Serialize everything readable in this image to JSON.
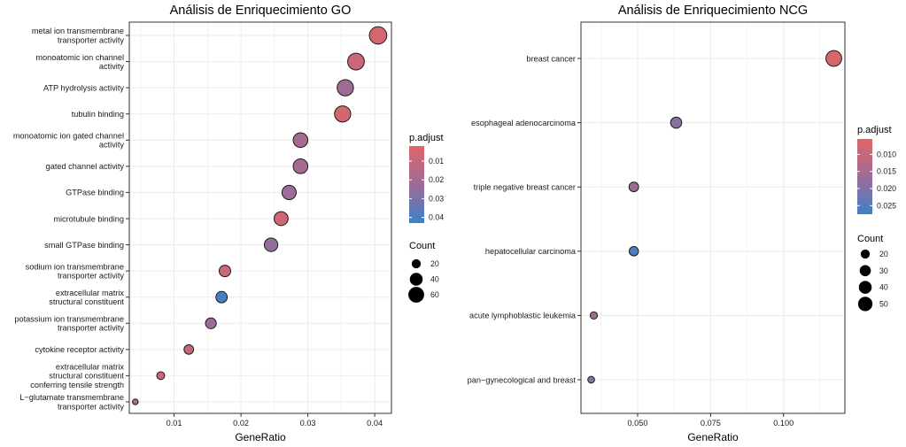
{
  "chart_data": [
    {
      "type": "scatter",
      "title": "Análisis de Enriquecimiento GO",
      "xlabel": "GeneRatio",
      "ylabel": "",
      "xlim": [
        0.0033,
        0.0425
      ],
      "xticks": [
        0.01,
        0.02,
        0.03,
        0.04
      ],
      "xtick_labels": [
        "0.01",
        "0.02",
        "0.03",
        "0.04"
      ],
      "grid": true,
      "legend_position": "right",
      "categories": [
        [
          "metal ion transmembrane",
          "transporter activity"
        ],
        [
          "monoatomic ion channel",
          "activity"
        ],
        [
          "ATP hydrolysis activity"
        ],
        [
          "tubulin binding"
        ],
        [
          "monoatomic ion gated channel",
          "activity"
        ],
        [
          "gated channel activity"
        ],
        [
          "GTPase binding"
        ],
        [
          "microtubule binding"
        ],
        [
          "small GTPase binding"
        ],
        [
          "sodium ion transmembrane",
          "transporter activity"
        ],
        [
          "extracellular matrix",
          "structural constituent"
        ],
        [
          "potassium ion transmembrane",
          "transporter activity"
        ],
        [
          "cytokine receptor activity"
        ],
        [
          "extracellular matrix",
          "structural constituent",
          "conferring tensile strength"
        ],
        [
          "L−glutamate transmembrane",
          "transporter activity"
        ]
      ],
      "x": [
        0.0405,
        0.0372,
        0.0356,
        0.0352,
        0.0289,
        0.0289,
        0.0272,
        0.026,
        0.0245,
        0.0176,
        0.0171,
        0.0155,
        0.0122,
        0.008,
        0.0042
      ],
      "count": [
        73,
        67,
        64,
        63,
        52,
        52,
        49,
        47,
        44,
        32,
        31,
        28,
        22,
        15,
        8
      ],
      "p_adjust": [
        0.006,
        0.008,
        0.022,
        0.006,
        0.02,
        0.02,
        0.022,
        0.008,
        0.025,
        0.008,
        0.041,
        0.023,
        0.01,
        0.01,
        0.015
      ],
      "color_legend": {
        "title": "p.adjust",
        "min": 0.002,
        "max": 0.043,
        "ticks": [
          0.01,
          0.02,
          0.03,
          0.04
        ],
        "tick_labels": [
          "0.01",
          "0.02",
          "0.03",
          "0.04"
        ]
      },
      "size_legend": {
        "title": "Count",
        "values": [
          20,
          40,
          60
        ],
        "labels": [
          "20",
          "40",
          "60"
        ]
      }
    },
    {
      "type": "scatter",
      "title": "Análisis de Enriquecimiento NCG",
      "xlabel": "GeneRatio",
      "ylabel": "",
      "xlim": [
        0.0306,
        0.121
      ],
      "xticks": [
        0.05,
        0.075,
        0.1
      ],
      "xtick_labels": [
        "0.050",
        "0.075",
        "0.100"
      ],
      "grid": true,
      "legend_position": "right",
      "categories": [
        [
          "breast cancer"
        ],
        [
          "esophageal adenocarcinoma"
        ],
        [
          "triple negative breast cancer"
        ],
        [
          "hepatocellular carcinoma"
        ],
        [
          "acute lymphoblastic leukemia"
        ],
        [
          "pan−gynecological and breast"
        ]
      ],
      "x": [
        0.1172,
        0.0632,
        0.0487,
        0.0487,
        0.035,
        0.0341
      ],
      "count": [
        60,
        30,
        22,
        21,
        13,
        11
      ],
      "p_adjust": [
        0.007,
        0.019,
        0.016,
        0.026,
        0.016,
        0.019
      ],
      "color_legend": {
        "title": "p.adjust",
        "min": 0.0055,
        "max": 0.0275,
        "ticks": [
          0.01,
          0.015,
          0.02,
          0.025
        ],
        "tick_labels": [
          "0.010",
          "0.015",
          "0.020",
          "0.025"
        ]
      },
      "size_legend": {
        "title": "Count",
        "values": [
          20,
          30,
          40,
          50
        ],
        "labels": [
          "20",
          "30",
          "40",
          "50"
        ]
      }
    }
  ],
  "colors": {
    "low_p": "#e06666",
    "mid_p": "#9e6b98",
    "high_p": "#3d81c6",
    "grid": "#ebebeb",
    "panel_border": "#333333"
  }
}
